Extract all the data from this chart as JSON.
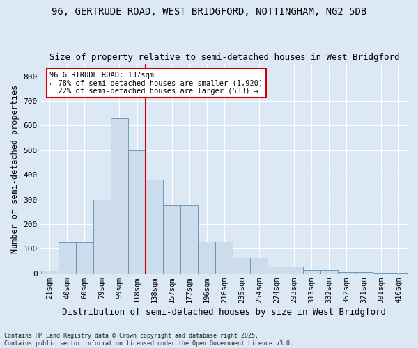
{
  "title_line1": "96, GERTRUDE ROAD, WEST BRIDGFORD, NOTTINGHAM, NG2 5DB",
  "title_line2": "Size of property relative to semi-detached houses in West Bridgford",
  "xlabel": "Distribution of semi-detached houses by size in West Bridgford",
  "ylabel": "Number of semi-detached properties",
  "footer_line1": "Contains HM Land Registry data © Crown copyright and database right 2025.",
  "footer_line2": "Contains public sector information licensed under the Open Government Licence v3.0.",
  "annotation_title": "96 GERTRUDE ROAD: 137sqm",
  "annotation_line1": "← 78% of semi-detached houses are smaller (1,920)",
  "annotation_line2": "  22% of semi-detached houses are larger (533) →",
  "bar_color": "#ccdcec",
  "bar_edge_color": "#6090b0",
  "marker_color": "#cc0000",
  "categories": [
    "21sqm",
    "40sqm",
    "60sqm",
    "79sqm",
    "99sqm",
    "118sqm",
    "138sqm",
    "157sqm",
    "177sqm",
    "196sqm",
    "216sqm",
    "235sqm",
    "254sqm",
    "274sqm",
    "293sqm",
    "313sqm",
    "332sqm",
    "352sqm",
    "371sqm",
    "391sqm",
    "410sqm"
  ],
  "values": [
    10,
    125,
    125,
    300,
    630,
    500,
    380,
    275,
    275,
    130,
    130,
    65,
    65,
    28,
    28,
    12,
    12,
    5,
    5,
    2,
    2
  ],
  "ylim": [
    0,
    850
  ],
  "yticks": [
    0,
    100,
    200,
    300,
    400,
    500,
    600,
    700,
    800
  ],
  "background_color": "#dce8f4",
  "plot_bg_color": "#dce8f4",
  "grid_color": "#ffffff",
  "title_fontsize": 10,
  "subtitle_fontsize": 9,
  "marker_bin_index": 6
}
